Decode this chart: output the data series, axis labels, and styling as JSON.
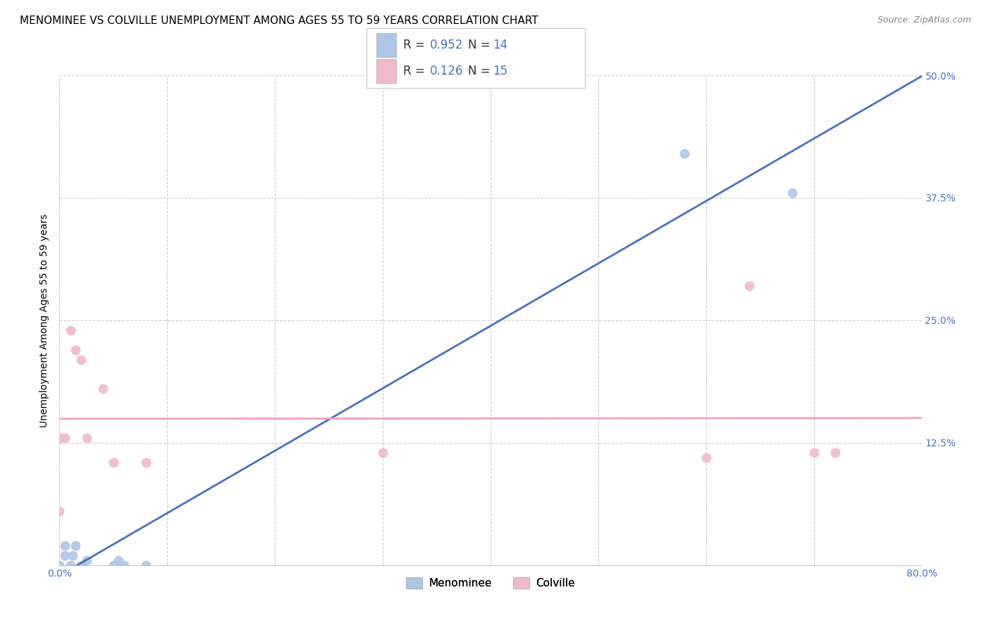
{
  "title": "MENOMINEE VS COLVILLE UNEMPLOYMENT AMONG AGES 55 TO 59 YEARS CORRELATION CHART",
  "source": "Source: ZipAtlas.com",
  "ylabel": "Unemployment Among Ages 55 to 59 years",
  "xlim": [
    0,
    0.8
  ],
  "ylim": [
    0,
    0.5
  ],
  "xticks": [
    0.0,
    0.1,
    0.2,
    0.3,
    0.4,
    0.5,
    0.6,
    0.7,
    0.8
  ],
  "yticks": [
    0.0,
    0.125,
    0.25,
    0.375,
    0.5
  ],
  "menominee_points": [
    [
      0.0,
      0.0
    ],
    [
      0.005,
      0.01
    ],
    [
      0.005,
      0.02
    ],
    [
      0.01,
      0.0
    ],
    [
      0.012,
      0.01
    ],
    [
      0.015,
      0.02
    ],
    [
      0.02,
      0.0
    ],
    [
      0.025,
      0.005
    ],
    [
      0.05,
      0.0
    ],
    [
      0.055,
      0.005
    ],
    [
      0.06,
      0.0
    ],
    [
      0.08,
      0.0
    ],
    [
      0.58,
      0.42
    ],
    [
      0.68,
      0.38
    ]
  ],
  "colville_points": [
    [
      0.0,
      0.13
    ],
    [
      0.005,
      0.13
    ],
    [
      0.01,
      0.24
    ],
    [
      0.015,
      0.22
    ],
    [
      0.02,
      0.21
    ],
    [
      0.025,
      0.13
    ],
    [
      0.04,
      0.18
    ],
    [
      0.05,
      0.105
    ],
    [
      0.08,
      0.105
    ],
    [
      0.3,
      0.115
    ],
    [
      0.6,
      0.11
    ],
    [
      0.64,
      0.285
    ],
    [
      0.7,
      0.115
    ],
    [
      0.72,
      0.115
    ],
    [
      0.0,
      0.055
    ]
  ],
  "menominee_color": "#adc6e8",
  "colville_color": "#f2b8cb",
  "menominee_line_color": "#4472c4",
  "colville_line_color": "#f4a0b8",
  "menominee_r": 0.952,
  "menominee_n": 14,
  "colville_r": 0.126,
  "colville_n": 15,
  "marker_size": 100,
  "background_color": "#ffffff",
  "grid_color": "#cccccc",
  "title_fontsize": 11,
  "axis_label_fontsize": 10,
  "tick_fontsize": 10,
  "tick_color": "#4472c4",
  "legend_fontsize": 12
}
